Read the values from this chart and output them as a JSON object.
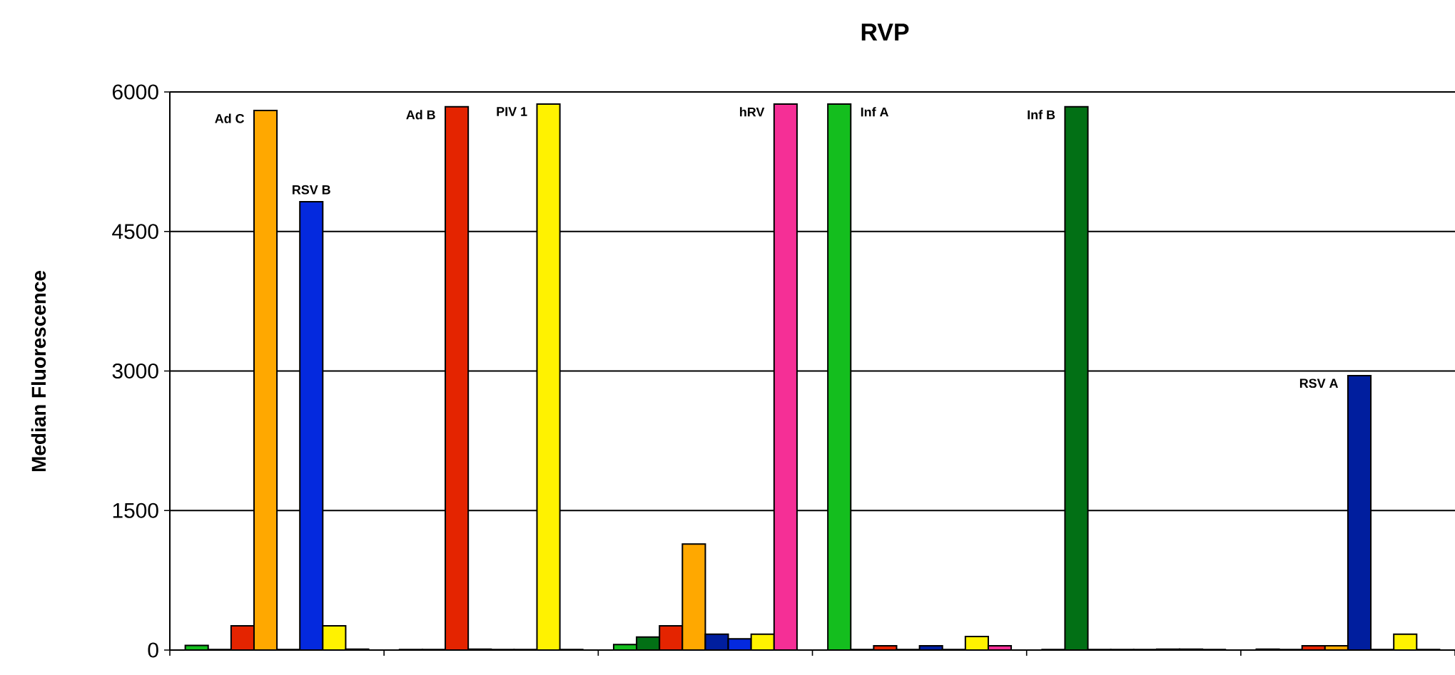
{
  "chart_data": {
    "type": "bar",
    "title": "RVP",
    "ylabel": "Median Fluorescence",
    "categories": [
      null,
      null,
      null,
      null,
      null,
      null
    ],
    "series": [
      {
        "name": "Inf A",
        "color": "#14be1e",
        "values": [
          50,
          5,
          60,
          5870,
          5,
          10
        ]
      },
      {
        "name": "Inf B",
        "color": "#027015",
        "values": [
          5,
          5,
          140,
          5,
          5840,
          5
        ]
      },
      {
        "name": "Ad B",
        "color": "#e42400",
        "values": [
          260,
          5840,
          260,
          45,
          5,
          45
        ]
      },
      {
        "name": "Ad C",
        "color": "#ffa800",
        "values": [
          5800,
          10,
          1140,
          5,
          5,
          45
        ]
      },
      {
        "name": "RSV A",
        "color": "#001e9e",
        "values": [
          5,
          5,
          170,
          45,
          5,
          2950
        ]
      },
      {
        "name": "RSV B",
        "color": "#0429de",
        "values": [
          4820,
          5,
          120,
          5,
          10,
          5
        ]
      },
      {
        "name": "PIV 1",
        "color": "#fff200",
        "values": [
          260,
          5870,
          170,
          145,
          10,
          170
        ]
      },
      {
        "name": "hRV",
        "color": "#f52f96",
        "values": [
          10,
          5,
          5870,
          45,
          5,
          5
        ]
      }
    ],
    "ylim": [
      0,
      6000
    ],
    "yticks": [
      0,
      1500,
      3000,
      4500,
      6000
    ],
    "grid": "y",
    "legend": false
  }
}
